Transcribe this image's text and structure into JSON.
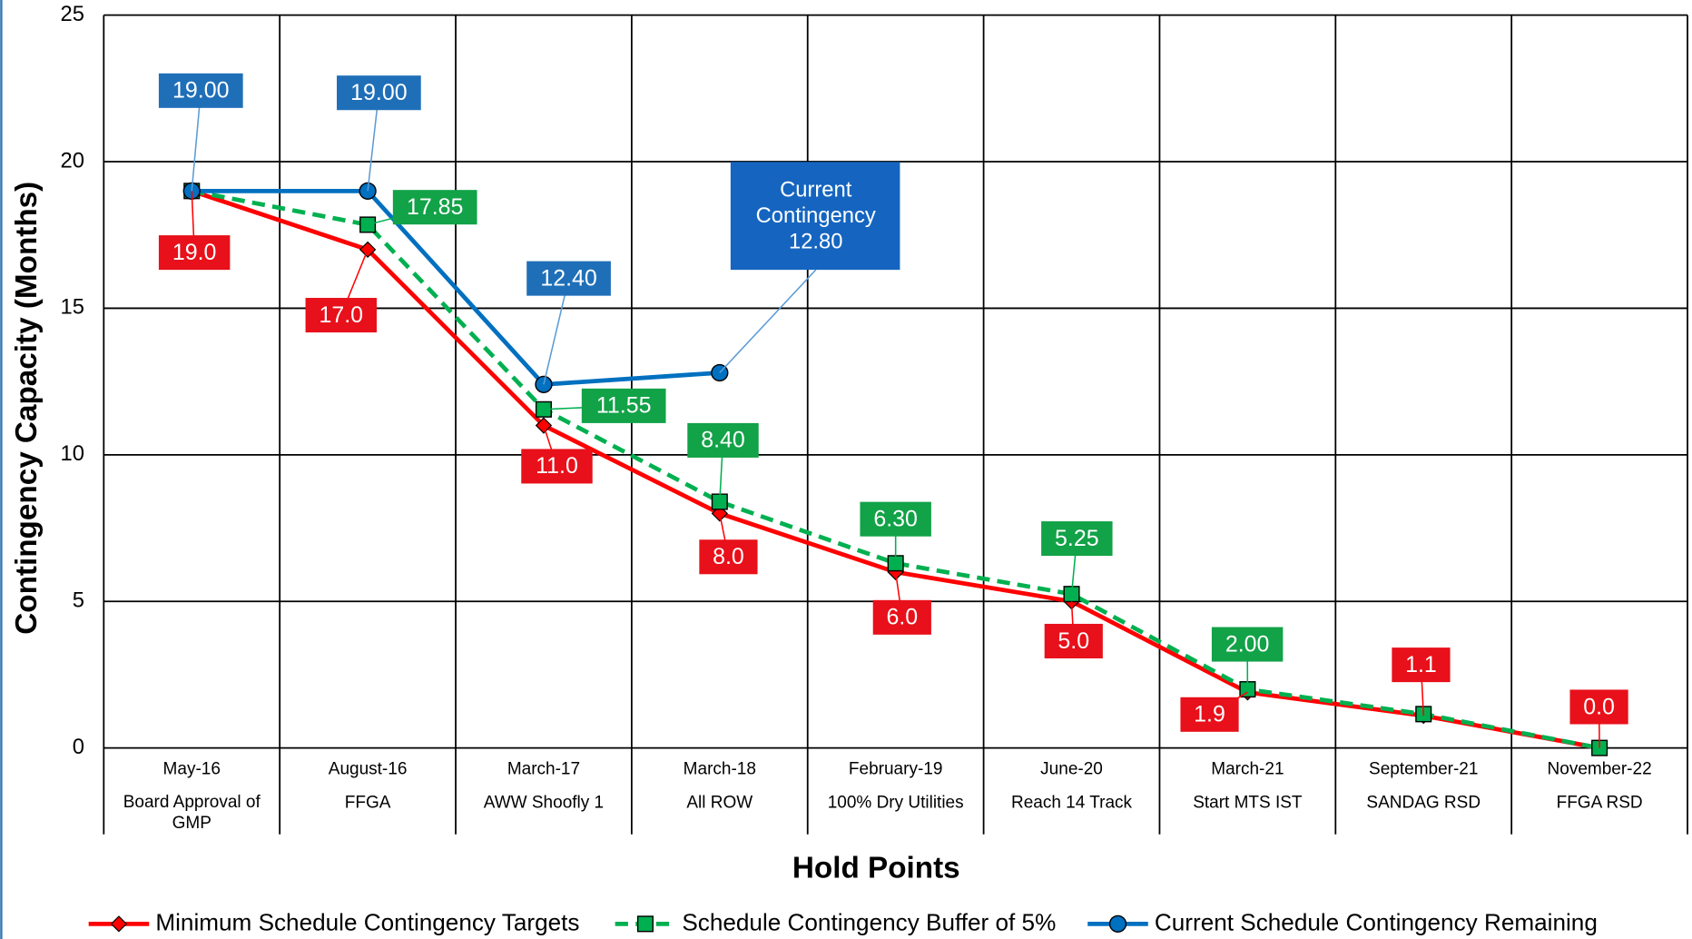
{
  "chart_data": {
    "type": "line",
    "x_label": "Hold Points",
    "y_label": "Contingency Capacity (Months)",
    "categories": [
      "May-16",
      "August-16",
      "March-17",
      "March-18",
      "February-19",
      "June-20",
      "March-21",
      "September-21",
      "November-22"
    ],
    "hold_points": [
      "Board Approval of GMP",
      "FFGA",
      "AWW Shoofly 1",
      "All ROW",
      "100% Dry Utilities",
      "Reach 14 Track",
      "Start MTS IST",
      "SANDAG RSD",
      "FFGA RSD"
    ],
    "ylim": [
      0,
      25
    ],
    "yticks": [
      0,
      5,
      10,
      15,
      20,
      25
    ],
    "grid": true,
    "legend": "bottom",
    "series": [
      {
        "name": "Minimum Schedule Contingency Targets",
        "color": "#ff0000",
        "marker": "diamond",
        "dashed": false,
        "values": [
          19.0,
          17.0,
          11.0,
          8.0,
          6.0,
          5.0,
          1.9,
          1.1,
          0.0
        ],
        "value_labels": [
          "19.0",
          "17.0",
          "11.0",
          "8.0",
          "6.0",
          "5.0",
          "1.9",
          "1.1",
          "0.0"
        ]
      },
      {
        "name": "Schedule Contingency Buffer of 5%",
        "color": "#00b050",
        "marker": "square",
        "dashed": true,
        "values": [
          19.0,
          17.85,
          11.55,
          8.4,
          6.3,
          5.25,
          2.0,
          1.155,
          0.0
        ],
        "value_labels": [
          null,
          "17.85",
          "11.55",
          "8.40",
          "6.30",
          "5.25",
          "2.00",
          null,
          null
        ]
      },
      {
        "name": "Current Schedule Contingency Remaining",
        "color": "#0070c0",
        "marker": "circle",
        "dashed": false,
        "values": [
          19.0,
          19.0,
          12.4,
          12.8,
          null,
          null,
          null,
          null,
          null
        ],
        "value_labels": [
          "19.00",
          "19.00",
          "12.40",
          "12.80",
          null,
          null,
          null,
          null,
          null
        ]
      }
    ],
    "annotation": [
      "Current",
      "Contingency"
    ]
  }
}
